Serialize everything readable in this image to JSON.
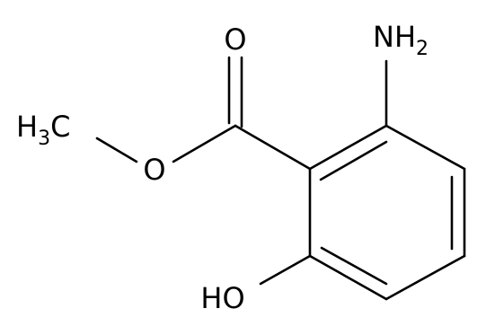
{
  "atoms": {
    "carbonyl_oxygen": {
      "label": "O"
    },
    "amino": {
      "label": "NH",
      "sub": "2"
    },
    "methyl": {
      "label": "H",
      "sub": "3",
      "tail": "C"
    },
    "ester_oxygen": {
      "label": "O"
    },
    "hydroxyl": {
      "label": "HO"
    }
  }
}
